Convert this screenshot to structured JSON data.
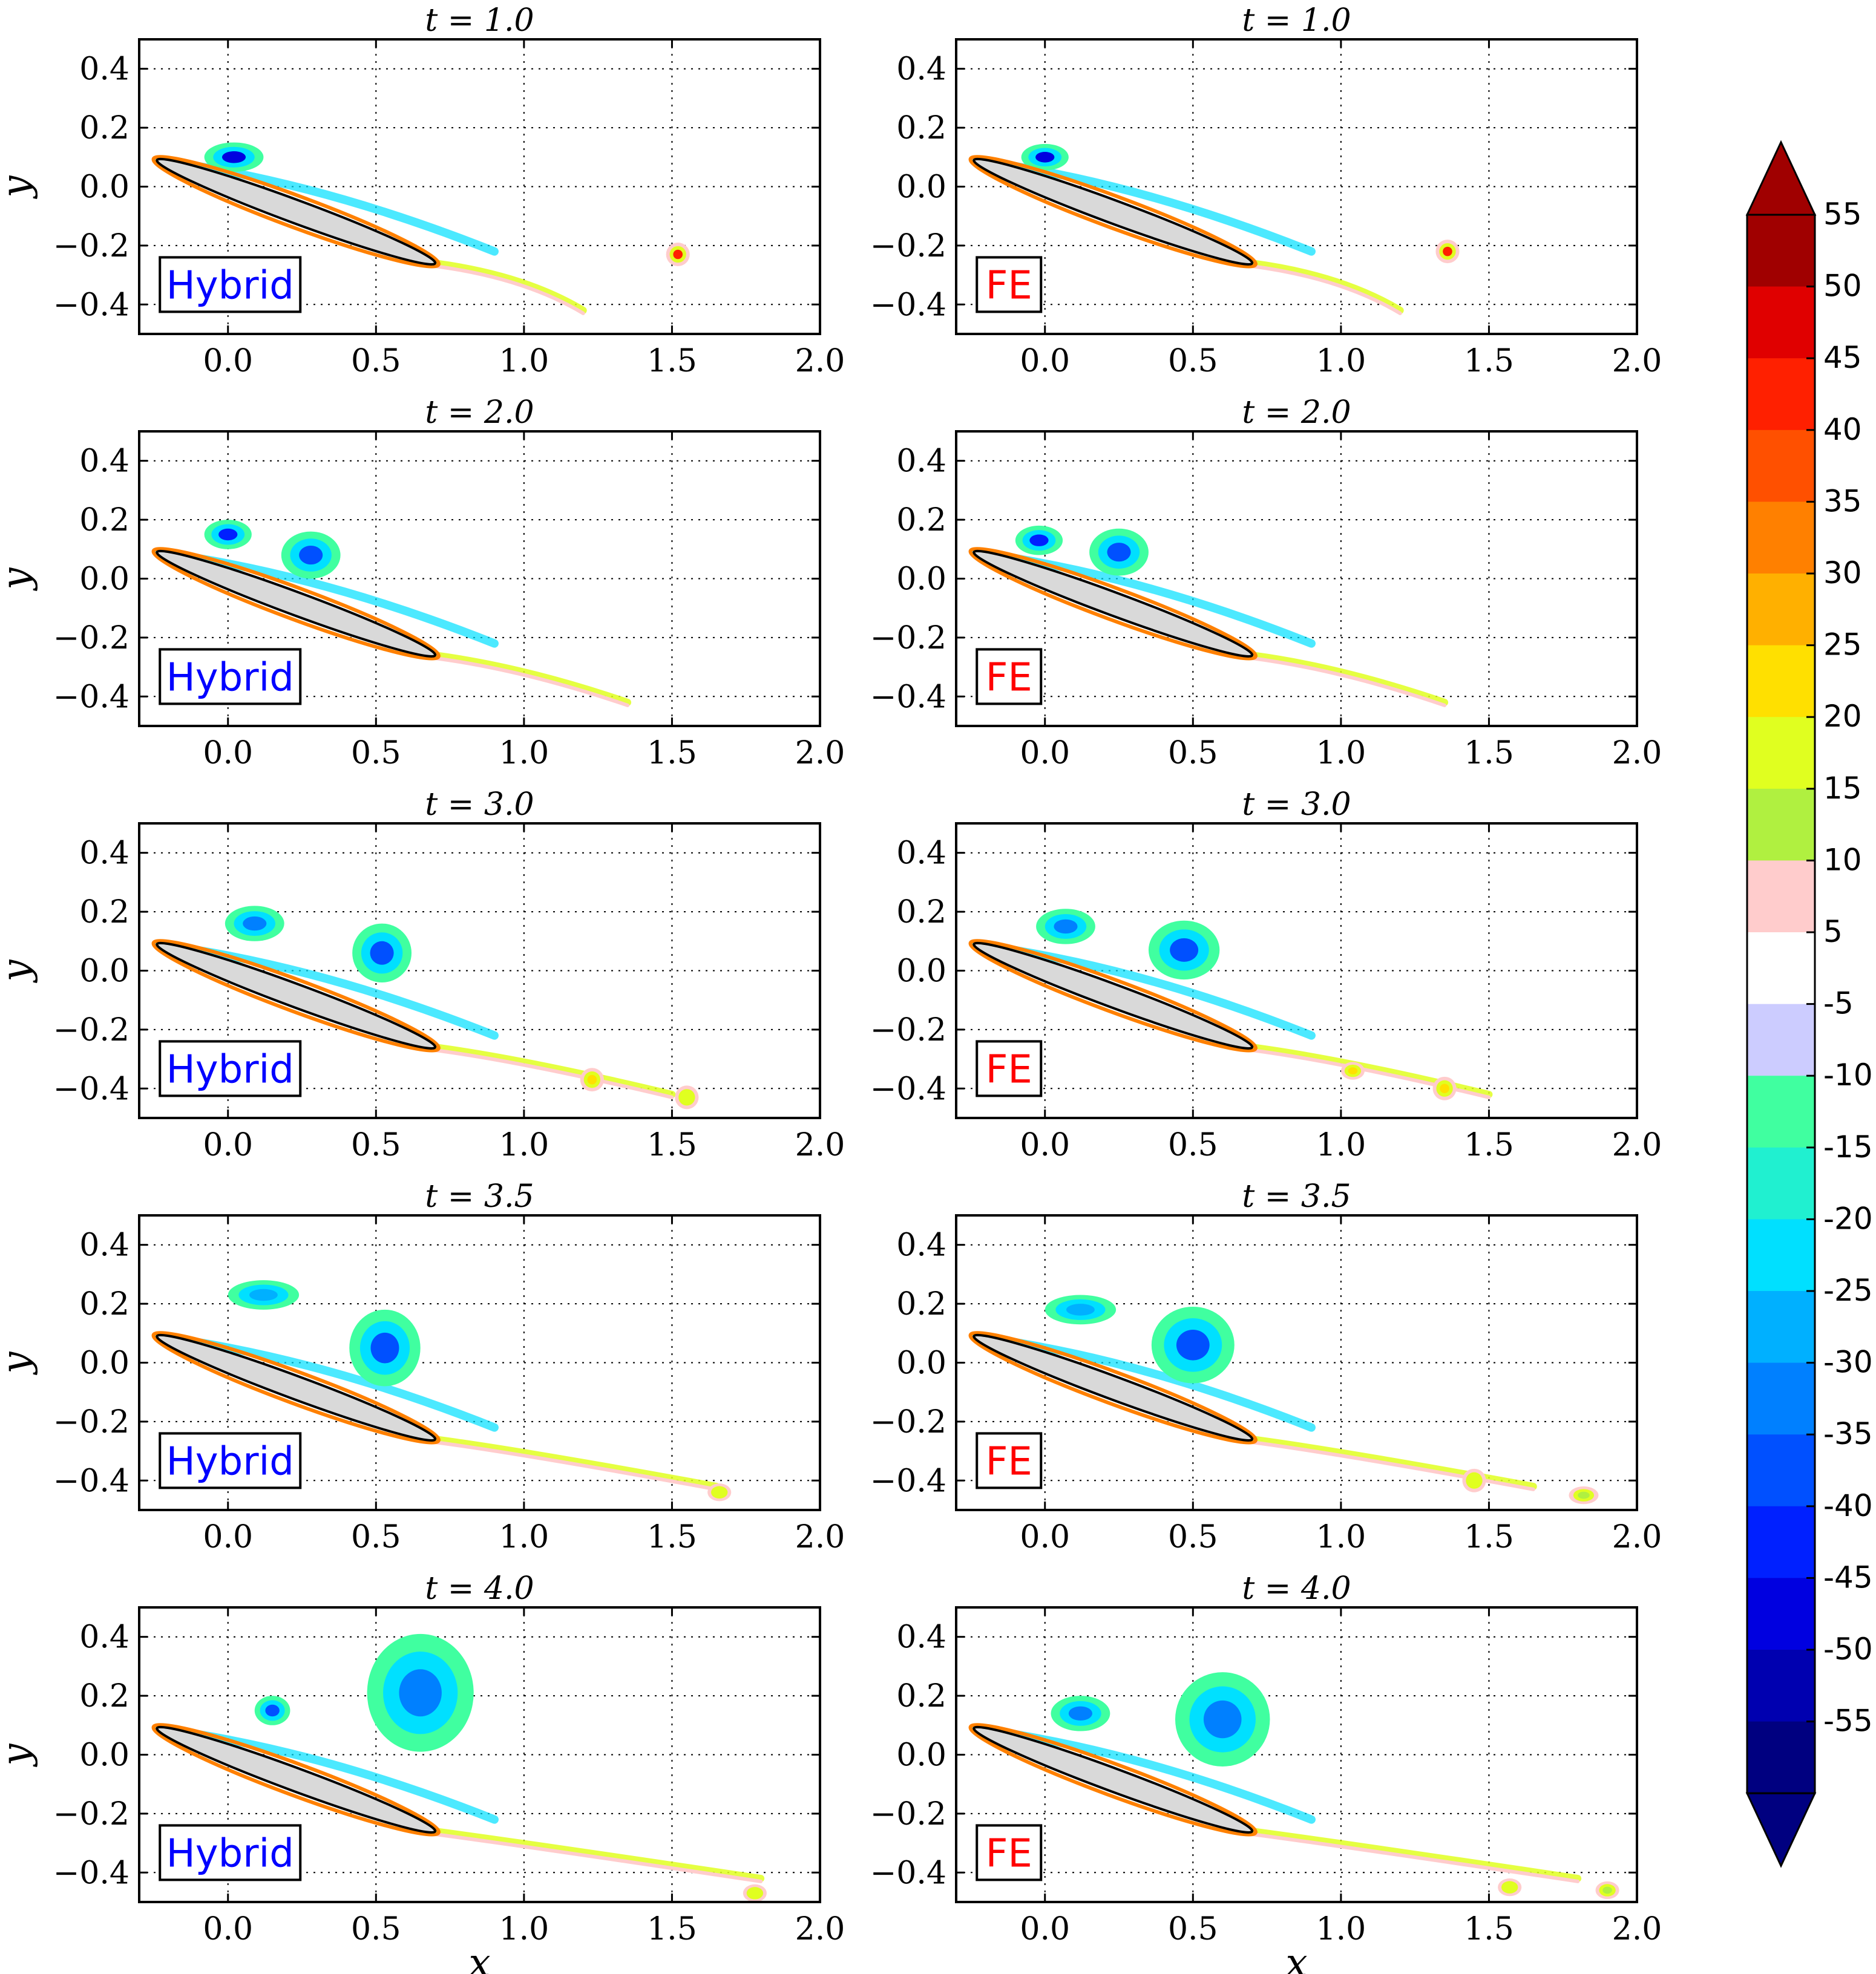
{
  "chart_data": {
    "type": "contour",
    "description_source": "vorticity contours around an inclined elliptical airfoil at successive times",
    "grid": true,
    "colorbar": {
      "ticks": [
        "55",
        "50",
        "45",
        "40",
        "35",
        "30",
        "25",
        "20",
        "15",
        "10",
        "5",
        "-5",
        "-10",
        "-15",
        "-20",
        "-25",
        "-30",
        "-35",
        "-40",
        "-45",
        "-50",
        "-55"
      ],
      "colors": [
        "#a00000",
        "#e00000",
        "#ff2000",
        "#ff5000",
        "#ff8000",
        "#ffb000",
        "#ffe000",
        "#e0ff20",
        "#b0f040",
        "#ffcccc",
        "#ffffff",
        "#ccccff",
        "#40ffa0",
        "#20f0d0",
        "#00e0ff",
        "#00b0ff",
        "#0080ff",
        "#0050ff",
        "#0020ff",
        "#0000e0",
        "#0000b0",
        "#000080"
      ]
    },
    "panels": [
      {
        "title": "t = 1.0",
        "method": "Hybrid",
        "method_color": "#0000ff",
        "xlim": [
          -0.3,
          2.0
        ],
        "ylim": [
          -0.5,
          0.5
        ],
        "xticks": [
          "0.0",
          "0.5",
          "1.0",
          "1.5",
          "2.0"
        ],
        "yticks": [
          "0.4",
          "0.2",
          "0.0",
          "−0.2",
          "−0.4"
        ],
        "ylabel": "y",
        "xlabel": ""
      },
      {
        "title": "t = 1.0",
        "method": "FE",
        "method_color": "#ff0000",
        "xlim": [
          -0.3,
          2.0
        ],
        "ylim": [
          -0.5,
          0.5
        ],
        "xticks": [
          "0.0",
          "0.5",
          "1.0",
          "1.5",
          "2.0"
        ],
        "yticks": [
          "0.4",
          "0.2",
          "0.0",
          "−0.2",
          "−0.4"
        ],
        "ylabel": "",
        "xlabel": ""
      },
      {
        "title": "t = 2.0",
        "method": "Hybrid",
        "method_color": "#0000ff",
        "xlim": [
          -0.3,
          2.0
        ],
        "ylim": [
          -0.5,
          0.5
        ],
        "xticks": [
          "0.0",
          "0.5",
          "1.0",
          "1.5",
          "2.0"
        ],
        "yticks": [
          "0.4",
          "0.2",
          "0.0",
          "−0.2",
          "−0.4"
        ],
        "ylabel": "y",
        "xlabel": ""
      },
      {
        "title": "t = 2.0",
        "method": "FE",
        "method_color": "#ff0000",
        "xlim": [
          -0.3,
          2.0
        ],
        "ylim": [
          -0.5,
          0.5
        ],
        "xticks": [
          "0.0",
          "0.5",
          "1.0",
          "1.5",
          "2.0"
        ],
        "yticks": [
          "0.4",
          "0.2",
          "0.0",
          "−0.2",
          "−0.4"
        ],
        "ylabel": "",
        "xlabel": ""
      },
      {
        "title": "t = 3.0",
        "method": "Hybrid",
        "method_color": "#0000ff",
        "xlim": [
          -0.3,
          2.0
        ],
        "ylim": [
          -0.5,
          0.5
        ],
        "xticks": [
          "0.0",
          "0.5",
          "1.0",
          "1.5",
          "2.0"
        ],
        "yticks": [
          "0.4",
          "0.2",
          "0.0",
          "−0.2",
          "−0.4"
        ],
        "ylabel": "y",
        "xlabel": ""
      },
      {
        "title": "t = 3.0",
        "method": "FE",
        "method_color": "#ff0000",
        "xlim": [
          -0.3,
          2.0
        ],
        "ylim": [
          -0.5,
          0.5
        ],
        "xticks": [
          "0.0",
          "0.5",
          "1.0",
          "1.5",
          "2.0"
        ],
        "yticks": [
          "0.4",
          "0.2",
          "0.0",
          "−0.2",
          "−0.4"
        ],
        "ylabel": "",
        "xlabel": ""
      },
      {
        "title": "t = 3.5",
        "method": "Hybrid",
        "method_color": "#0000ff",
        "xlim": [
          -0.3,
          2.0
        ],
        "ylim": [
          -0.5,
          0.5
        ],
        "xticks": [
          "0.0",
          "0.5",
          "1.0",
          "1.5",
          "2.0"
        ],
        "yticks": [
          "0.4",
          "0.2",
          "0.0",
          "−0.2",
          "−0.4"
        ],
        "ylabel": "y",
        "xlabel": ""
      },
      {
        "title": "t = 3.5",
        "method": "FE",
        "method_color": "#ff0000",
        "xlim": [
          -0.3,
          2.0
        ],
        "ylim": [
          -0.5,
          0.5
        ],
        "xticks": [
          "0.0",
          "0.5",
          "1.0",
          "1.5",
          "2.0"
        ],
        "yticks": [
          "0.4",
          "0.2",
          "0.0",
          "−0.2",
          "−0.4"
        ],
        "ylabel": "",
        "xlabel": ""
      },
      {
        "title": "t = 4.0",
        "method": "Hybrid",
        "method_color": "#0000ff",
        "xlim": [
          -0.3,
          2.0
        ],
        "ylim": [
          -0.5,
          0.5
        ],
        "xticks": [
          "0.0",
          "0.5",
          "1.0",
          "1.5",
          "2.0"
        ],
        "yticks": [
          "0.4",
          "0.2",
          "0.0",
          "−0.2",
          "−0.4"
        ],
        "ylabel": "y",
        "xlabel": "x"
      },
      {
        "title": "t = 4.0",
        "method": "FE",
        "method_color": "#ff0000",
        "xlim": [
          -0.3,
          2.0
        ],
        "ylim": [
          -0.5,
          0.5
        ],
        "xticks": [
          "0.0",
          "0.5",
          "1.0",
          "1.5",
          "2.0"
        ],
        "yticks": [
          "0.4",
          "0.2",
          "0.0",
          "−0.2",
          "−0.4"
        ],
        "ylabel": "",
        "xlabel": "x"
      }
    ],
    "airfoil": {
      "leading_edge": [
        -0.24,
        0.09
      ],
      "trailing_edge": [
        0.7,
        -0.26
      ],
      "shape": "ellipse",
      "fill": "#d9d9d9"
    },
    "vortices": [
      [
        {
          "x": 0.02,
          "y": 0.1,
          "rx": 0.1,
          "ry": 0.05,
          "level": -45
        },
        {
          "x": 1.52,
          "y": -0.23,
          "rx": 0.04,
          "ry": 0.04,
          "level": 45
        }
      ],
      [
        {
          "x": 0.0,
          "y": 0.1,
          "rx": 0.08,
          "ry": 0.045,
          "level": -45
        },
        {
          "x": 1.36,
          "y": -0.22,
          "rx": 0.04,
          "ry": 0.04,
          "level": 45
        }
      ],
      [
        {
          "x": 0.0,
          "y": 0.15,
          "rx": 0.08,
          "ry": 0.05,
          "level": -40
        },
        {
          "x": 0.28,
          "y": 0.08,
          "rx": 0.1,
          "ry": 0.08,
          "level": -35
        }
      ],
      [
        {
          "x": -0.02,
          "y": 0.13,
          "rx": 0.08,
          "ry": 0.05,
          "level": -40
        },
        {
          "x": 0.25,
          "y": 0.09,
          "rx": 0.1,
          "ry": 0.08,
          "level": -35
        }
      ],
      [
        {
          "x": 0.09,
          "y": 0.16,
          "rx": 0.1,
          "ry": 0.06,
          "level": -30
        },
        {
          "x": 0.52,
          "y": 0.06,
          "rx": 0.1,
          "ry": 0.1,
          "level": -35
        },
        {
          "x": 1.23,
          "y": -0.37,
          "rx": 0.04,
          "ry": 0.04,
          "level": 25
        },
        {
          "x": 1.55,
          "y": -0.43,
          "rx": 0.04,
          "ry": 0.04,
          "level": 20
        }
      ],
      [
        {
          "x": 0.07,
          "y": 0.15,
          "rx": 0.1,
          "ry": 0.06,
          "level": -30
        },
        {
          "x": 0.47,
          "y": 0.07,
          "rx": 0.12,
          "ry": 0.1,
          "level": -35
        },
        {
          "x": 1.04,
          "y": -0.34,
          "rx": 0.04,
          "ry": 0.03,
          "level": 25
        },
        {
          "x": 1.35,
          "y": -0.4,
          "rx": 0.04,
          "ry": 0.04,
          "level": 25
        }
      ],
      [
        {
          "x": 0.12,
          "y": 0.23,
          "rx": 0.12,
          "ry": 0.05,
          "level": -25
        },
        {
          "x": 0.53,
          "y": 0.05,
          "rx": 0.12,
          "ry": 0.13,
          "level": -35
        },
        {
          "x": 1.66,
          "y": -0.44,
          "rx": 0.04,
          "ry": 0.03,
          "level": 20
        }
      ],
      [
        {
          "x": 0.12,
          "y": 0.18,
          "rx": 0.12,
          "ry": 0.05,
          "level": -25
        },
        {
          "x": 0.5,
          "y": 0.06,
          "rx": 0.14,
          "ry": 0.13,
          "level": -35
        },
        {
          "x": 1.45,
          "y": -0.4,
          "rx": 0.04,
          "ry": 0.04,
          "level": 20
        },
        {
          "x": 1.82,
          "y": -0.45,
          "rx": 0.05,
          "ry": 0.03,
          "level": 15
        }
      ],
      [
        {
          "x": 0.15,
          "y": 0.15,
          "rx": 0.06,
          "ry": 0.05,
          "level": -35
        },
        {
          "x": 0.65,
          "y": 0.21,
          "rx": 0.18,
          "ry": 0.2,
          "level": -30
        },
        {
          "x": 1.78,
          "y": -0.47,
          "rx": 0.04,
          "ry": 0.03,
          "level": 20
        }
      ],
      [
        {
          "x": 0.12,
          "y": 0.14,
          "rx": 0.1,
          "ry": 0.06,
          "level": -30
        },
        {
          "x": 0.6,
          "y": 0.12,
          "rx": 0.16,
          "ry": 0.16,
          "level": -30
        },
        {
          "x": 1.57,
          "y": -0.45,
          "rx": 0.04,
          "ry": 0.03,
          "level": 20
        },
        {
          "x": 1.9,
          "y": -0.46,
          "rx": 0.04,
          "ry": 0.03,
          "level": 15
        }
      ]
    ]
  }
}
